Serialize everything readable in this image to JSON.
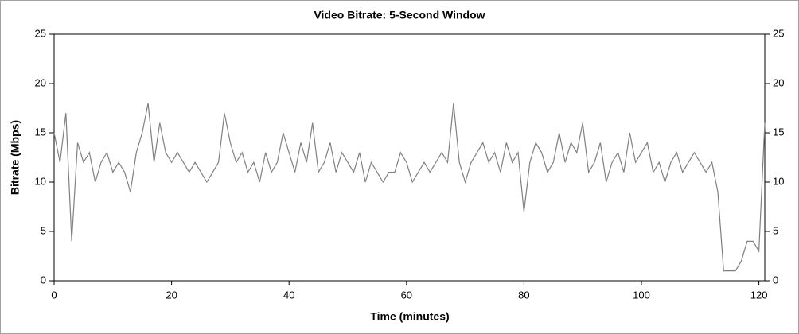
{
  "chart_data": {
    "type": "line",
    "title": "Video Bitrate: 5-Second Window",
    "x_label": "Time (minutes)",
    "y_label": "Bitrate (Mbps)",
    "x": [
      0,
      1,
      2,
      3,
      4,
      5,
      6,
      7,
      8,
      9,
      10,
      11,
      12,
      13,
      14,
      15,
      16,
      17,
      18,
      19,
      20,
      21,
      22,
      23,
      24,
      25,
      26,
      27,
      28,
      29,
      30,
      31,
      32,
      33,
      34,
      35,
      36,
      37,
      38,
      39,
      40,
      41,
      42,
      43,
      44,
      45,
      46,
      47,
      48,
      49,
      50,
      51,
      52,
      53,
      54,
      55,
      56,
      57,
      58,
      59,
      60,
      61,
      62,
      63,
      64,
      65,
      66,
      67,
      68,
      69,
      70,
      71,
      72,
      73,
      74,
      75,
      76,
      77,
      78,
      79,
      80,
      81,
      82,
      83,
      84,
      85,
      86,
      87,
      88,
      89,
      90,
      91,
      92,
      93,
      94,
      95,
      96,
      97,
      98,
      99,
      100,
      101,
      102,
      103,
      104,
      105,
      106,
      107,
      108,
      109,
      110,
      111,
      112,
      113,
      114,
      115,
      116,
      117,
      118,
      119,
      120,
      121
    ],
    "values": [
      15,
      12,
      17,
      4,
      14,
      12,
      13,
      10,
      12,
      13,
      11,
      12,
      11,
      9,
      13,
      15,
      18,
      12,
      16,
      13,
      12,
      13,
      12,
      11,
      12,
      11,
      10,
      11,
      12,
      17,
      14,
      12,
      13,
      11,
      12,
      10,
      13,
      11,
      12,
      15,
      13,
      11,
      14,
      12,
      16,
      11,
      12,
      14,
      11,
      13,
      12,
      11,
      13,
      10,
      12,
      11,
      10,
      11,
      11,
      13,
      12,
      10,
      11,
      12,
      11,
      12,
      13,
      12,
      18,
      12,
      10,
      12,
      13,
      14,
      12,
      13,
      11,
      14,
      12,
      13,
      7,
      12,
      14,
      13,
      11,
      12,
      15,
      12,
      14,
      13,
      16,
      11,
      12,
      14,
      10,
      12,
      13,
      11,
      15,
      12,
      13,
      14,
      11,
      12,
      10,
      12,
      13,
      11,
      12,
      13,
      12,
      11,
      12,
      9,
      1,
      1,
      1,
      2,
      4,
      4,
      3,
      16
    ],
    "color": "#808080",
    "xlim": [
      0,
      121
    ],
    "xticks": [
      0,
      20,
      40,
      60,
      80,
      100,
      120
    ],
    "ylim": [
      0,
      25
    ],
    "yticks": [
      0,
      5,
      10,
      15,
      20,
      25
    ],
    "y2lim": [
      0,
      25
    ],
    "y2ticks": [
      0,
      5,
      10,
      15,
      20,
      25
    ]
  }
}
